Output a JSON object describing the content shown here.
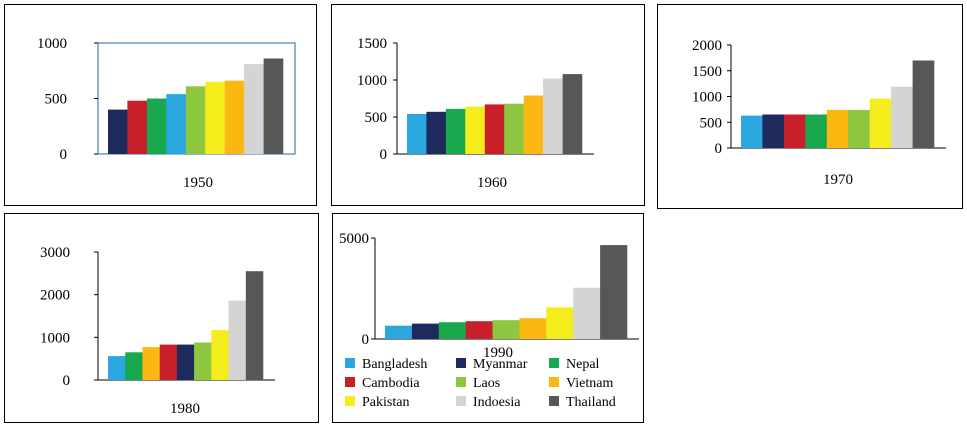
{
  "colors": {
    "Bangladesh": "#2aa7df",
    "Myanmar": "#1f2a5c",
    "Nepal": "#1aa84f",
    "Cambodia": "#c8202a",
    "Laos": "#8dc73f",
    "Vietnam": "#fbb812",
    "Pakistan": "#f5ec1c",
    "Indoesia": "#d4d4d4",
    "Thailand": "#575757"
  },
  "legend": {
    "rows": [
      [
        "Bangladesh",
        "Myanmar",
        "Nepal"
      ],
      [
        "Cambodia",
        "Laos",
        "Vietnam"
      ],
      [
        "Pakistan",
        "Indoesia",
        "Thailand"
      ]
    ]
  },
  "chart_data": [
    {
      "type": "bar",
      "title": "1950",
      "ylim": [
        0,
        1000
      ],
      "yticks": [
        "0",
        "500",
        "1000"
      ],
      "categories": [
        "Myanmar",
        "Cambodia",
        "Nepal",
        "Bangladesh",
        "Laos",
        "Pakistan",
        "Vietnam",
        "Indoesia",
        "Thailand"
      ],
      "values": [
        400,
        480,
        500,
        540,
        610,
        650,
        660,
        810,
        860
      ]
    },
    {
      "type": "bar",
      "title": "1960",
      "ylim": [
        0,
        1500
      ],
      "yticks": [
        "0",
        "500",
        "1000",
        "1500"
      ],
      "categories": [
        "Bangladesh",
        "Myanmar",
        "Nepal",
        "Pakistan",
        "Cambodia",
        "Laos",
        "Vietnam",
        "Indoesia",
        "Thailand"
      ],
      "values": [
        540,
        570,
        610,
        640,
        670,
        680,
        790,
        1020,
        1080
      ]
    },
    {
      "type": "bar",
      "title": "1970",
      "ylim": [
        0,
        2000
      ],
      "yticks": [
        "0",
        "500",
        "1000",
        "1500",
        "2000"
      ],
      "categories": [
        "Bangladesh",
        "Myanmar",
        "Cambodia",
        "Nepal",
        "Vietnam",
        "Laos",
        "Pakistan",
        "Indoesia",
        "Thailand"
      ],
      "values": [
        630,
        650,
        650,
        650,
        740,
        740,
        960,
        1190,
        1700
      ]
    },
    {
      "type": "bar",
      "title": "1980",
      "ylim": [
        0,
        3000
      ],
      "yticks": [
        "0",
        "1000",
        "2000",
        "3000"
      ],
      "categories": [
        "Bangladesh",
        "Nepal",
        "Vietnam",
        "Cambodia",
        "Myanmar",
        "Laos",
        "Pakistan",
        "Indoesia",
        "Thailand"
      ],
      "values": [
        560,
        650,
        770,
        830,
        830,
        880,
        1170,
        1860,
        2550
      ]
    },
    {
      "type": "bar",
      "title": "1990",
      "ylim": [
        0,
        5000
      ],
      "yticks": [
        "0",
        "5000"
      ],
      "categories": [
        "Bangladesh",
        "Myanmar",
        "Nepal",
        "Cambodia",
        "Laos",
        "Vietnam",
        "Pakistan",
        "Indoesia",
        "Thailand"
      ],
      "values": [
        660,
        760,
        830,
        880,
        930,
        1030,
        1570,
        2540,
        4650
      ]
    }
  ]
}
